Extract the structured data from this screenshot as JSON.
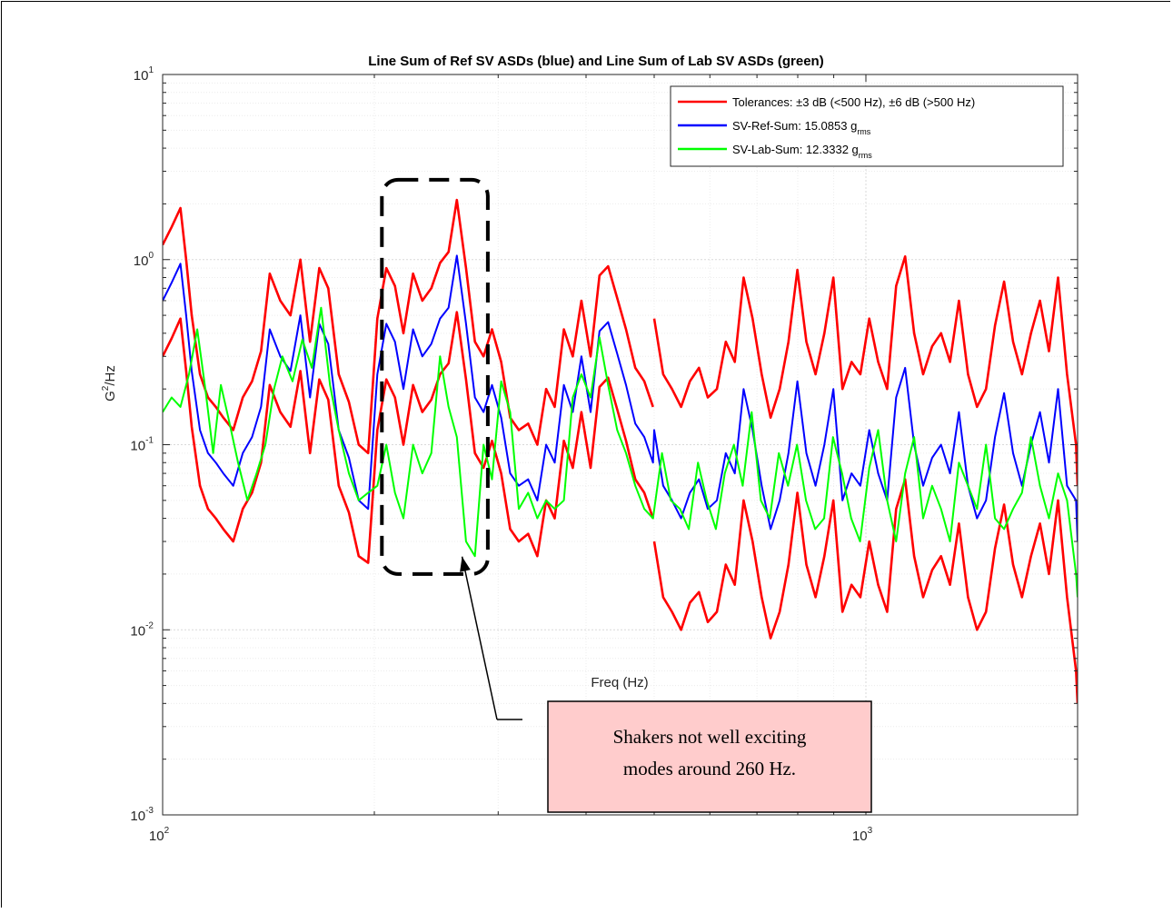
{
  "chart_data": {
    "type": "line",
    "title": "Line Sum of Ref SV ASDs (blue)  and Line Sum of Lab SV ASDs (green)",
    "xlabel": "Freq (Hz)",
    "ylabel_base": "G",
    "ylabel_sup": "2",
    "ylabel_tail": "/Hz",
    "x_scale": "log",
    "y_scale": "log",
    "xlim": [
      100,
      2000
    ],
    "ylim": [
      0.001,
      10
    ],
    "grid": true,
    "legend_position": "top-right",
    "x_ticks": [
      {
        "value": 100,
        "base": "10",
        "exp": "2"
      },
      {
        "value": 1000,
        "base": "10",
        "exp": "3"
      }
    ],
    "y_ticks": [
      {
        "value": 0.001,
        "base": "10",
        "exp": "-3"
      },
      {
        "value": 0.01,
        "base": "10",
        "exp": "-2"
      },
      {
        "value": 0.1,
        "base": "10",
        "exp": "-1"
      },
      {
        "value": 1,
        "base": "10",
        "exp": "0"
      },
      {
        "value": 10,
        "base": "10",
        "exp": "1"
      }
    ],
    "legend": [
      {
        "label": "Tolerances: ±3 dB (<500 Hz), ±6 dB (>500 Hz)",
        "sub": "",
        "color": "#ff0000"
      },
      {
        "label": "SV-Ref-Sum: 15.0853 g",
        "sub": "rms",
        "color": "#0000ff"
      },
      {
        "label": "SV-Lab-Sum: 12.3332 g",
        "sub": "rms",
        "color": "#00ff00"
      }
    ],
    "series": [
      {
        "name": "SV-Ref-Sum: 15.0853 g rms",
        "color": "#0000ff",
        "x": [
          100,
          103,
          106,
          108,
          110,
          113,
          116,
          119,
          122,
          126,
          130,
          134,
          138,
          142,
          147,
          152,
          157,
          162,
          167,
          172,
          178,
          184,
          190,
          196,
          202,
          208,
          214,
          220,
          227,
          234,
          241,
          248,
          255,
          262,
          270,
          278,
          286,
          294,
          303,
          312,
          321,
          331,
          341,
          351,
          361,
          372,
          383,
          394,
          406,
          418,
          430,
          443,
          456,
          470,
          484,
          498,
          500,
          515,
          530,
          546,
          562,
          579,
          596,
          614,
          632,
          651,
          670,
          690,
          711,
          732,
          754,
          776,
          799,
          823,
          848,
          873,
          899,
          926,
          954,
          982,
          1011,
          1041,
          1072,
          1104,
          1137,
          1171,
          1206,
          1242,
          1279,
          1317,
          1356,
          1397,
          1439,
          1482,
          1526,
          1572,
          1619,
          1667,
          1717,
          1768,
          1821,
          1876,
          1932,
          1990,
          2000
        ],
        "y": [
          0.6,
          0.75,
          0.95,
          0.5,
          0.25,
          0.12,
          0.09,
          0.08,
          0.07,
          0.06,
          0.09,
          0.11,
          0.16,
          0.42,
          0.3,
          0.25,
          0.5,
          0.18,
          0.45,
          0.35,
          0.12,
          0.085,
          0.05,
          0.045,
          0.24,
          0.45,
          0.36,
          0.2,
          0.42,
          0.3,
          0.35,
          0.48,
          0.55,
          1.05,
          0.45,
          0.18,
          0.15,
          0.21,
          0.14,
          0.07,
          0.06,
          0.065,
          0.05,
          0.1,
          0.08,
          0.21,
          0.15,
          0.3,
          0.15,
          0.41,
          0.46,
          0.31,
          0.21,
          0.13,
          0.11,
          0.08,
          0.12,
          0.06,
          0.05,
          0.04,
          0.055,
          0.065,
          0.045,
          0.05,
          0.09,
          0.07,
          0.2,
          0.12,
          0.06,
          0.035,
          0.05,
          0.09,
          0.22,
          0.09,
          0.06,
          0.1,
          0.2,
          0.05,
          0.07,
          0.06,
          0.12,
          0.07,
          0.05,
          0.18,
          0.26,
          0.1,
          0.06,
          0.085,
          0.1,
          0.07,
          0.15,
          0.06,
          0.04,
          0.05,
          0.11,
          0.19,
          0.09,
          0.06,
          0.1,
          0.15,
          0.08,
          0.2,
          0.06,
          0.05,
          0.03
        ]
      },
      {
        "name": "SV-Lab-Sum: 12.3332 g rms",
        "color": "#00ff00",
        "x": [
          100,
          103,
          106,
          109,
          112,
          115,
          118,
          121,
          124,
          128,
          132,
          136,
          140,
          144,
          148,
          153,
          158,
          163,
          168,
          173,
          178,
          184,
          190,
          196,
          202,
          208,
          214,
          220,
          227,
          234,
          241,
          248,
          255,
          262,
          270,
          278,
          286,
          294,
          303,
          312,
          321,
          331,
          341,
          351,
          361,
          372,
          383,
          394,
          406,
          418,
          430,
          443,
          456,
          470,
          484,
          498,
          513,
          528,
          544,
          560,
          577,
          594,
          612,
          630,
          649,
          668,
          688,
          709,
          730,
          752,
          775,
          798,
          822,
          847,
          872,
          898,
          925,
          953,
          981,
          1011,
          1041,
          1072,
          1104,
          1137,
          1171,
          1206,
          1242,
          1279,
          1317,
          1356,
          1397,
          1439,
          1482,
          1526,
          1572,
          1619,
          1667,
          1717,
          1768,
          1821,
          1876,
          1932,
          1990,
          2000
        ],
        "y": [
          0.15,
          0.18,
          0.16,
          0.24,
          0.42,
          0.2,
          0.09,
          0.21,
          0.14,
          0.08,
          0.05,
          0.07,
          0.1,
          0.2,
          0.3,
          0.22,
          0.37,
          0.26,
          0.55,
          0.21,
          0.12,
          0.07,
          0.05,
          0.055,
          0.06,
          0.1,
          0.055,
          0.04,
          0.1,
          0.07,
          0.09,
          0.3,
          0.16,
          0.11,
          0.03,
          0.025,
          0.1,
          0.065,
          0.22,
          0.15,
          0.045,
          0.055,
          0.04,
          0.05,
          0.045,
          0.05,
          0.18,
          0.24,
          0.18,
          0.38,
          0.21,
          0.12,
          0.09,
          0.06,
          0.045,
          0.04,
          0.09,
          0.05,
          0.045,
          0.035,
          0.08,
          0.05,
          0.035,
          0.07,
          0.1,
          0.06,
          0.15,
          0.05,
          0.04,
          0.09,
          0.06,
          0.1,
          0.05,
          0.035,
          0.04,
          0.11,
          0.07,
          0.04,
          0.03,
          0.075,
          0.12,
          0.05,
          0.03,
          0.07,
          0.11,
          0.04,
          0.06,
          0.045,
          0.03,
          0.08,
          0.06,
          0.045,
          0.1,
          0.04,
          0.035,
          0.045,
          0.055,
          0.11,
          0.06,
          0.04,
          0.07,
          0.05,
          0.02,
          0.015
        ]
      },
      {
        "name": "Tolerance upper",
        "color": "#ff0000",
        "x": [
          100,
          103,
          106,
          108,
          110,
          113,
          116,
          119,
          122,
          126,
          130,
          134,
          138,
          142,
          147,
          152,
          157,
          162,
          167,
          172,
          178,
          184,
          190,
          196,
          202,
          208,
          214,
          220,
          227,
          234,
          241,
          248,
          255,
          262,
          270,
          278,
          286,
          294,
          303,
          312,
          321,
          331,
          341,
          351,
          361,
          372,
          383,
          394,
          406,
          418,
          430,
          443,
          456,
          470,
          484,
          498
        ],
        "y": [
          1.2,
          1.5,
          1.9,
          1.0,
          0.5,
          0.24,
          0.18,
          0.16,
          0.14,
          0.12,
          0.18,
          0.22,
          0.32,
          0.84,
          0.6,
          0.5,
          1.0,
          0.36,
          0.9,
          0.7,
          0.24,
          0.17,
          0.1,
          0.09,
          0.48,
          0.9,
          0.72,
          0.4,
          0.84,
          0.6,
          0.7,
          0.96,
          1.1,
          2.1,
          0.9,
          0.36,
          0.3,
          0.42,
          0.28,
          0.14,
          0.12,
          0.13,
          0.1,
          0.2,
          0.16,
          0.42,
          0.3,
          0.6,
          0.3,
          0.82,
          0.92,
          0.62,
          0.42,
          0.26,
          0.22,
          0.16
        ]
      },
      {
        "name": "Tolerance lower",
        "color": "#ff0000",
        "x": [
          100,
          103,
          106,
          108,
          110,
          113,
          116,
          119,
          122,
          126,
          130,
          134,
          138,
          142,
          147,
          152,
          157,
          162,
          167,
          172,
          178,
          184,
          190,
          196,
          202,
          208,
          214,
          220,
          227,
          234,
          241,
          248,
          255,
          262,
          270,
          278,
          286,
          294,
          303,
          312,
          321,
          331,
          341,
          351,
          361,
          372,
          383,
          394,
          406,
          418,
          430,
          443,
          456,
          470,
          484,
          498
        ],
        "y": [
          0.3,
          0.375,
          0.48,
          0.25,
          0.125,
          0.06,
          0.045,
          0.04,
          0.035,
          0.03,
          0.045,
          0.055,
          0.08,
          0.21,
          0.15,
          0.125,
          0.25,
          0.09,
          0.225,
          0.175,
          0.06,
          0.043,
          0.025,
          0.023,
          0.12,
          0.225,
          0.18,
          0.1,
          0.21,
          0.15,
          0.175,
          0.24,
          0.275,
          0.52,
          0.225,
          0.09,
          0.075,
          0.105,
          0.07,
          0.035,
          0.03,
          0.033,
          0.025,
          0.05,
          0.04,
          0.105,
          0.075,
          0.15,
          0.075,
          0.205,
          0.23,
          0.155,
          0.105,
          0.065,
          0.055,
          0.04
        ]
      },
      {
        "name": "Tolerance upper (>500 Hz)",
        "color": "#ff0000",
        "x": [
          500,
          515,
          530,
          546,
          562,
          579,
          596,
          614,
          632,
          651,
          670,
          690,
          711,
          732,
          754,
          776,
          799,
          823,
          848,
          873,
          899,
          926,
          954,
          982,
          1011,
          1041,
          1072,
          1104,
          1137,
          1171,
          1206,
          1242,
          1279,
          1317,
          1356,
          1397,
          1439,
          1482,
          1526,
          1572,
          1619,
          1667,
          1717,
          1768,
          1821,
          1876,
          1932,
          1990,
          2000
        ],
        "y": [
          0.48,
          0.24,
          0.2,
          0.16,
          0.22,
          0.26,
          0.18,
          0.2,
          0.36,
          0.28,
          0.8,
          0.48,
          0.24,
          0.14,
          0.2,
          0.36,
          0.88,
          0.36,
          0.24,
          0.4,
          0.8,
          0.2,
          0.28,
          0.24,
          0.48,
          0.28,
          0.2,
          0.72,
          1.04,
          0.4,
          0.24,
          0.34,
          0.4,
          0.28,
          0.6,
          0.24,
          0.16,
          0.2,
          0.44,
          0.76,
          0.36,
          0.24,
          0.4,
          0.6,
          0.32,
          0.8,
          0.24,
          0.1,
          0.06
        ]
      },
      {
        "name": "Tolerance lower (>500 Hz)",
        "color": "#ff0000",
        "x": [
          500,
          515,
          530,
          546,
          562,
          579,
          596,
          614,
          632,
          651,
          670,
          690,
          711,
          732,
          754,
          776,
          799,
          823,
          848,
          873,
          899,
          926,
          954,
          982,
          1011,
          1041,
          1072,
          1104,
          1137,
          1171,
          1206,
          1242,
          1279,
          1317,
          1356,
          1397,
          1439,
          1482,
          1526,
          1572,
          1619,
          1667,
          1717,
          1768,
          1821,
          1876,
          1932,
          1990,
          2000
        ],
        "y": [
          0.03,
          0.015,
          0.0125,
          0.01,
          0.014,
          0.016,
          0.011,
          0.0125,
          0.0225,
          0.0175,
          0.05,
          0.03,
          0.015,
          0.009,
          0.0125,
          0.0225,
          0.055,
          0.0225,
          0.015,
          0.025,
          0.05,
          0.0125,
          0.0175,
          0.015,
          0.03,
          0.0175,
          0.0125,
          0.045,
          0.065,
          0.025,
          0.015,
          0.021,
          0.025,
          0.0175,
          0.0375,
          0.015,
          0.01,
          0.0125,
          0.0275,
          0.0475,
          0.0225,
          0.015,
          0.025,
          0.0375,
          0.02,
          0.05,
          0.015,
          0.006,
          0.004
        ]
      }
    ],
    "annotation": {
      "line1": "Shakers not well exciting",
      "line2": "modes around 260 Hz.",
      "highlight_x_range": [
        205,
        290
      ],
      "highlight_y_range": [
        0.02,
        2.7
      ],
      "arrow_target": {
        "x": 265,
        "y": 0.026
      },
      "box_fill": "#ffcccc"
    }
  }
}
